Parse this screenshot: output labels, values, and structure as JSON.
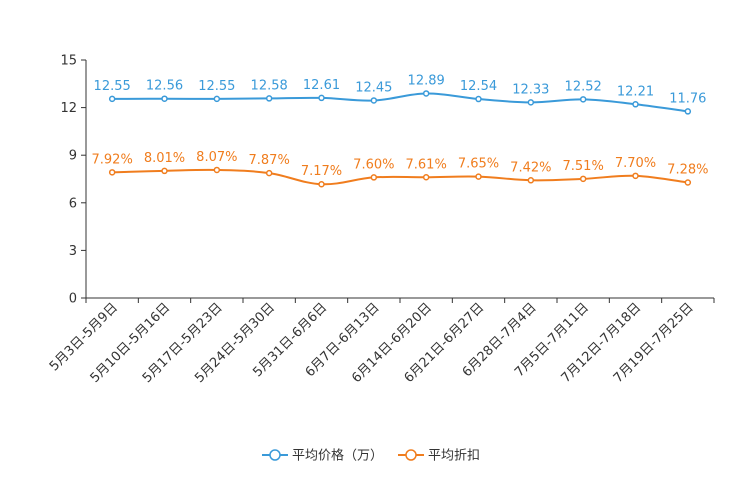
{
  "chart_data": {
    "type": "line",
    "title": "",
    "xlabel": "",
    "ylabel": "",
    "ylim": [
      0,
      15
    ],
    "yticks": [
      0,
      3,
      6,
      9,
      12,
      15
    ],
    "grid": false,
    "legend_position": "bottom",
    "categories": [
      "5月3日-5月9日",
      "5月10日-5月16日",
      "5月17日-5月23日",
      "5月24日-5月30日",
      "5月31日-6月6日",
      "6月7日-6月13日",
      "6月14日-6月20日",
      "6月21日-6月27日",
      "6月28日-7月4日",
      "7月5日-7月11日",
      "7月12日-7月18日",
      "7月19日-7月25日"
    ],
    "series": [
      {
        "name": "平均价格（万）",
        "color": "#3a9ad9",
        "values": [
          12.55,
          12.56,
          12.55,
          12.58,
          12.61,
          12.45,
          12.89,
          12.54,
          12.33,
          12.52,
          12.21,
          11.76
        ],
        "labels": [
          "12.55",
          "12.56",
          "12.55",
          "12.58",
          "12.61",
          "12.45",
          "12.89",
          "12.54",
          "12.33",
          "12.52",
          "12.21",
          "11.76"
        ]
      },
      {
        "name": "平均折扣",
        "color": "#f07d1e",
        "values": [
          7.92,
          8.01,
          8.07,
          7.87,
          7.17,
          7.6,
          7.61,
          7.65,
          7.42,
          7.51,
          7.7,
          7.28
        ],
        "labels": [
          "7.92%",
          "8.01%",
          "8.07%",
          "7.87%",
          "7.17%",
          "7.60%",
          "7.61%",
          "7.65%",
          "7.42%",
          "7.51%",
          "7.70%",
          "7.28%"
        ]
      }
    ]
  }
}
